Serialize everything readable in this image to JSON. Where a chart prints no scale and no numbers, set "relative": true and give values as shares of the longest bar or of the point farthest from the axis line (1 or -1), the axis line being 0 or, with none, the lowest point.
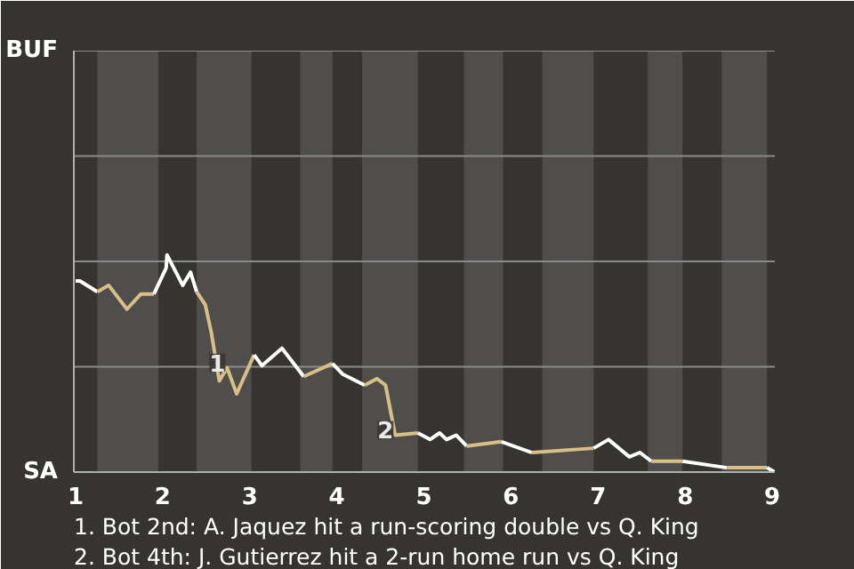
{
  "chart_data": {
    "type": "line",
    "relative": true,
    "series": [
      {
        "color": "#ffffff",
        "x": [
          1,
          1.05,
          1.25
        ],
        "values": [
          0.88,
          0.88,
          0.83
        ]
      },
      {
        "color": "#d9bf86",
        "x": [
          1.25,
          1.38,
          1.59,
          1.75,
          1.9
        ],
        "values": [
          0.83,
          0.86,
          0.75,
          0.82,
          0.82
        ]
      },
      {
        "color": "#ffffff",
        "x": [
          1.9,
          2.04,
          2.05,
          2.23,
          2.32,
          2.39
        ],
        "values": [
          0.82,
          0.94,
          1,
          0.86,
          0.92,
          0.83
        ]
      },
      {
        "color": "#d9bf86",
        "x": [
          2.39,
          2.49,
          2.56,
          2.65,
          2.74,
          2.85,
          3.05
        ],
        "values": [
          0.83,
          0.77,
          0.64,
          0.42,
          0.48,
          0.36,
          0.54
        ]
      },
      {
        "color": "#ffffff",
        "x": [
          3.05,
          3.14,
          3.37,
          3.62
        ],
        "values": [
          0.54,
          0.49,
          0.57,
          0.44
        ]
      },
      {
        "color": "#d9bf86",
        "x": [
          3.62,
          3.95
        ],
        "values": [
          0.44,
          0.5
        ]
      },
      {
        "color": "#ffffff",
        "x": [
          3.95,
          4.07,
          4.32
        ],
        "values": [
          0.5,
          0.45,
          0.4
        ]
      },
      {
        "color": "#d9bf86",
        "x": [
          4.32,
          4.46,
          4.56,
          4.67,
          4.93
        ],
        "values": [
          0.4,
          0.43,
          0.4,
          0.17,
          0.18
        ]
      },
      {
        "color": "#ffffff",
        "x": [
          4.93,
          5.07,
          5.18,
          5.26,
          5.37,
          5.49
        ],
        "values": [
          0.18,
          0.15,
          0.18,
          0.15,
          0.17,
          0.12
        ]
      },
      {
        "color": "#d9bf86",
        "x": [
          5.49,
          5.89
        ],
        "values": [
          0.12,
          0.14
        ]
      },
      {
        "color": "#ffffff",
        "x": [
          5.89,
          6.24
        ],
        "values": [
          0.14,
          0.09
        ]
      },
      {
        "color": "#d9bf86",
        "x": [
          6.24,
          6.95
        ],
        "values": [
          0.09,
          0.11
        ]
      },
      {
        "color": "#ffffff",
        "x": [
          6.95,
          7.12,
          7.36,
          7.48,
          7.61
        ],
        "values": [
          0.11,
          0.15,
          0.07,
          0.09,
          0.05
        ]
      },
      {
        "color": "#d9bf86",
        "x": [
          7.61,
          7.97
        ],
        "values": [
          0.05,
          0.05
        ]
      },
      {
        "color": "#ffffff",
        "x": [
          7.97,
          8.48
        ],
        "values": [
          0.05,
          0.02
        ]
      },
      {
        "color": "#d9bf86",
        "x": [
          8.48,
          8.94
        ],
        "values": [
          0.02,
          0.02
        ]
      },
      {
        "color": "#ffffff",
        "x": [
          8.94,
          9.03
        ],
        "values": [
          0.02,
          0
        ]
      }
    ],
    "xlim": [
      0.98,
      9.03
    ],
    "xticks": [
      1,
      2,
      3,
      4,
      5,
      6,
      7,
      8,
      9
    ],
    "ref_lines": [
      {
        "axis": "y",
        "value": 0.485,
        "color": "#8a8a8a"
      },
      {
        "axis": "y",
        "value": 0.97,
        "color": "#8a8a8a"
      },
      {
        "axis": "y",
        "value": 1.455,
        "color": "#8a8a8a"
      },
      {
        "axis": "y",
        "value": 1.94,
        "color": "#8a8a8a"
      }
    ],
    "bands": [
      {
        "axis": "x",
        "from": 1.25,
        "to": 1.95,
        "color": "#4f4e4c"
      },
      {
        "axis": "x",
        "from": 2.39,
        "to": 3.02,
        "color": "#4f4e4c"
      },
      {
        "axis": "x",
        "from": 3.58,
        "to": 3.95,
        "color": "#4f4e4c"
      },
      {
        "axis": "x",
        "from": 4.29,
        "to": 4.93,
        "color": "#4f4e4c"
      },
      {
        "axis": "x",
        "from": 5.46,
        "to": 5.91,
        "color": "#4f4e4c"
      },
      {
        "axis": "x",
        "from": 6.36,
        "to": 6.95,
        "color": "#4f4e4c"
      },
      {
        "axis": "x",
        "from": 7.57,
        "to": 7.97,
        "color": "#4f4e4c"
      },
      {
        "axis": "x",
        "from": 8.42,
        "to": 8.94,
        "color": "#4f4e4c"
      }
    ],
    "annotations": [
      "BUF",
      "SA",
      {
        "text": "1",
        "x": 2.74,
        "y": 0.48
      },
      {
        "text": "2",
        "x": 4.67,
        "y": 0.17
      },
      "1. Bot 2nd: A. Jaquez hit a run-scoring double vs Q. King",
      "2. Bot 4th: J. Gutierrez hit a 2-run home run vs Q. King"
    ]
  }
}
